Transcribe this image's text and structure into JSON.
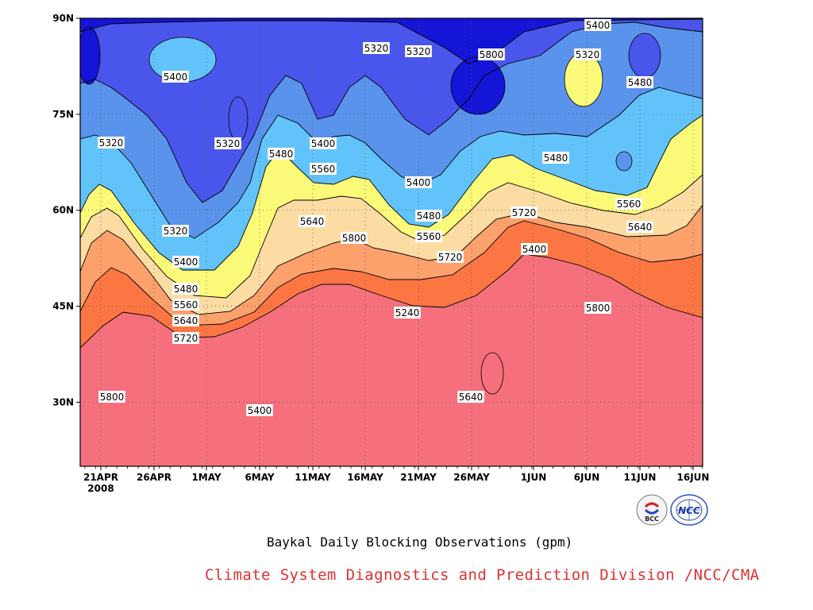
{
  "chart_data": {
    "type": "contour",
    "title": "",
    "xlabel": "",
    "ylabel": "",
    "x_ticks": [
      "21APR",
      "26APR",
      "1MAY",
      "6MAY",
      "11MAY",
      "16MAY",
      "21MAY",
      "26MAY",
      "1JUN",
      "6JUN",
      "11JUN",
      "16JUN"
    ],
    "x_year_label": "2008",
    "y_ticks": [
      "30N",
      "45N",
      "60N",
      "75N",
      "90N"
    ],
    "ylim": [
      20,
      90
    ],
    "contour_levels": [
      5240,
      5320,
      5400,
      5480,
      5560,
      5640,
      5720,
      5800
    ],
    "contour_labels": [
      {
        "value": "5400"
      },
      {
        "value": "5320"
      },
      {
        "value": "5400"
      },
      {
        "value": "5480"
      },
      {
        "value": "5560"
      },
      {
        "value": "5640"
      },
      {
        "value": "5720"
      },
      {
        "value": "5800"
      },
      {
        "value": "5320"
      },
      {
        "value": "5480"
      },
      {
        "value": "5320"
      },
      {
        "value": "5400"
      },
      {
        "value": "5560"
      },
      {
        "value": "5640"
      },
      {
        "value": "5800"
      },
      {
        "value": "5400"
      },
      {
        "value": "5320"
      },
      {
        "value": "5320"
      },
      {
        "value": "5400"
      },
      {
        "value": "5480"
      },
      {
        "value": "5560"
      },
      {
        "value": "5720"
      },
      {
        "value": "5240"
      },
      {
        "value": "5800"
      },
      {
        "value": "5640"
      },
      {
        "value": "5720"
      },
      {
        "value": "5400"
      },
      {
        "value": "5480"
      },
      {
        "value": "5400"
      },
      {
        "value": "5800"
      },
      {
        "value": "5320"
      },
      {
        "value": "5480"
      },
      {
        "value": "5560"
      },
      {
        "value": "5640"
      }
    ],
    "band_colors": [
      "#1515d8",
      "#4a55ec",
      "#5a93ec",
      "#62c3fa",
      "#fafa78",
      "#fcdca2",
      "#fca06c",
      "#fc7644",
      "#f5707c"
    ]
  },
  "caption": "Baykal Daily Blocking Observations (gpm)",
  "credit": "Climate System Diagnostics and Prediction Division /NCC/CMA",
  "logos": {
    "bcc_label": "BCC",
    "ncc_label": "NCC"
  }
}
